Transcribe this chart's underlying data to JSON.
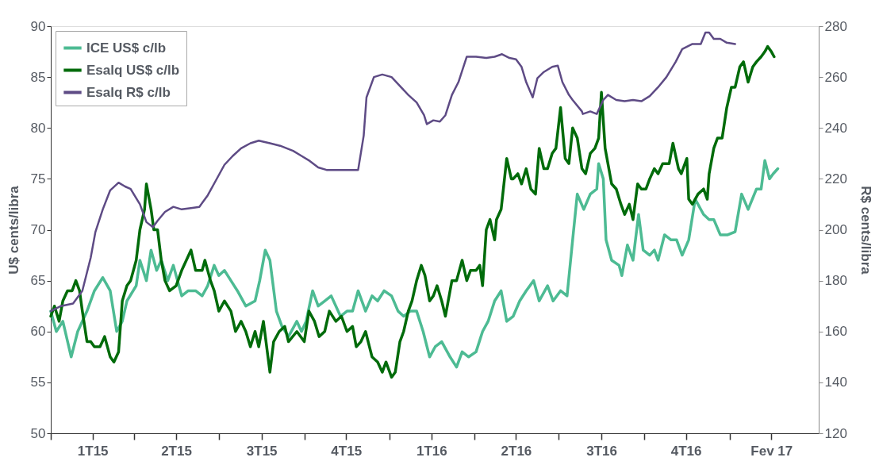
{
  "chart_data": {
    "type": "line",
    "ylabel": "U$ cents/libra",
    "y2label": "R$ cents/libra",
    "xlim": [
      "2015-01-01",
      "2017-04-07"
    ],
    "xticks": [
      {
        "value": "2015-01-01",
        "label": null
      },
      {
        "value": "2015-02-15",
        "label": "1T15"
      },
      {
        "value": "2015-04-01",
        "label": null
      },
      {
        "value": "2015-05-16",
        "label": "2T15"
      },
      {
        "value": "2015-07-01",
        "label": null
      },
      {
        "value": "2015-08-16",
        "label": "3T15"
      },
      {
        "value": "2015-10-01",
        "label": null
      },
      {
        "value": "2015-11-15",
        "label": "4T15"
      },
      {
        "value": "2016-01-01",
        "label": null
      },
      {
        "value": "2016-02-15",
        "label": "1T16"
      },
      {
        "value": "2016-04-01",
        "label": null
      },
      {
        "value": "2016-05-16",
        "label": "2T16"
      },
      {
        "value": "2016-07-01",
        "label": null
      },
      {
        "value": "2016-08-16",
        "label": "3T16"
      },
      {
        "value": "2016-10-01",
        "label": null
      },
      {
        "value": "2016-11-15",
        "label": "4T16"
      },
      {
        "value": "2017-01-01",
        "label": null
      },
      {
        "value": "2017-02-15",
        "label": "Fev 17"
      }
    ],
    "ylim": [
      50,
      90
    ],
    "yticks": [
      50,
      55,
      60,
      65,
      70,
      75,
      80,
      85,
      90
    ],
    "y2lim": [
      120,
      280
    ],
    "y2ticks": [
      120,
      140,
      160,
      180,
      200,
      220,
      240,
      260,
      280
    ],
    "legend": "top left",
    "grid": false,
    "series": [
      {
        "name": "ICE US$ c/lb",
        "color": "#4dbb93",
        "x": [
          "2015-01-01",
          "2015-01-07",
          "2015-01-14",
          "2015-01-23",
          "2015-01-30",
          "2015-02-09",
          "2015-02-17",
          "2015-02-26",
          "2015-03-06",
          "2015-03-13",
          "2015-03-19",
          "2015-03-24",
          "2015-04-03",
          "2015-04-07",
          "2015-04-14",
          "2015-04-19",
          "2015-04-25",
          "2015-04-30",
          "2015-05-07",
          "2015-05-13",
          "2015-05-22",
          "2015-05-29",
          "2015-06-06",
          "2015-06-13",
          "2015-06-19",
          "2015-06-26",
          "2015-07-01",
          "2015-07-07",
          "2015-07-14",
          "2015-07-21",
          "2015-07-30",
          "2015-08-09",
          "2015-08-14",
          "2015-08-20",
          "2015-08-25",
          "2015-09-01",
          "2015-09-07",
          "2015-09-14",
          "2015-09-23",
          "2015-09-28",
          "2015-10-03",
          "2015-10-10",
          "2015-10-16",
          "2015-10-23",
          "2015-10-30",
          "2015-11-09",
          "2015-11-16",
          "2015-11-22",
          "2015-11-28",
          "2015-12-06",
          "2015-12-13",
          "2015-12-19",
          "2015-12-26",
          "2016-01-03",
          "2016-01-10",
          "2016-01-16",
          "2016-01-23",
          "2016-01-30",
          "2016-02-06",
          "2016-02-13",
          "2016-02-19",
          "2016-02-26",
          "2016-03-06",
          "2016-03-13",
          "2016-03-19",
          "2016-03-26",
          "2016-04-03",
          "2016-04-10",
          "2016-04-16",
          "2016-04-23",
          "2016-04-30",
          "2016-05-06",
          "2016-05-13",
          "2016-05-20",
          "2016-05-27",
          "2016-06-04",
          "2016-06-10",
          "2016-06-19",
          "2016-06-25",
          "2016-07-03",
          "2016-07-10",
          "2016-07-16",
          "2016-07-21",
          "2016-07-28",
          "2016-08-04",
          "2016-08-11",
          "2016-08-13",
          "2016-08-18",
          "2016-08-21",
          "2016-08-27",
          "2016-09-04",
          "2016-09-07",
          "2016-09-13",
          "2016-09-19",
          "2016-09-25",
          "2016-09-30",
          "2016-10-07",
          "2016-10-12",
          "2016-10-16",
          "2016-10-23",
          "2016-10-30",
          "2016-11-05",
          "2016-11-11",
          "2016-11-18",
          "2016-11-25",
          "2016-12-04",
          "2016-12-10",
          "2016-12-15",
          "2016-12-22",
          "2016-12-30",
          "2017-01-07",
          "2017-01-14",
          "2017-01-21",
          "2017-01-30",
          "2017-02-04",
          "2017-02-08",
          "2017-02-13",
          "2017-02-17",
          "2017-02-22"
        ],
        "values": [
          62,
          60,
          61,
          57.5,
          60,
          62,
          64,
          65.3,
          64,
          60,
          61,
          63,
          64.5,
          67,
          65,
          68,
          66,
          67,
          65,
          66.5,
          63.5,
          64,
          64,
          63.5,
          64.5,
          66.5,
          65.5,
          66,
          65,
          64,
          62.5,
          63,
          65,
          68,
          67,
          62,
          60.5,
          59.5,
          61,
          60,
          61,
          64,
          62.5,
          63,
          63.5,
          61.5,
          62,
          62,
          64,
          62,
          63.5,
          63,
          64,
          63.5,
          62,
          61.5,
          62,
          62,
          60,
          57.5,
          58.5,
          59,
          57.5,
          56.5,
          58,
          57.5,
          58,
          60,
          61,
          63,
          64,
          61,
          61.5,
          63,
          64,
          65,
          63,
          64.5,
          63,
          64,
          63.5,
          69,
          73.5,
          72,
          73.5,
          74,
          76.5,
          75,
          69,
          67,
          66.5,
          65.5,
          68.5,
          67,
          71.5,
          68,
          67.5,
          68,
          67,
          69.5,
          69,
          69,
          67.5,
          69,
          73,
          71.5,
          71,
          71,
          69.5,
          69.5,
          69.8,
          73.5,
          72,
          74,
          74,
          76.8,
          75,
          75.5,
          76
        ]
      },
      {
        "name": "Esalq US$ c/lb",
        "color": "#006b0a",
        "x": [
          "2015-01-01",
          "2015-01-05",
          "2015-01-10",
          "2015-01-14",
          "2015-01-19",
          "2015-01-24",
          "2015-01-28",
          "2015-02-01",
          "2015-02-04",
          "2015-02-09",
          "2015-02-13",
          "2015-02-17",
          "2015-02-23",
          "2015-02-28",
          "2015-03-06",
          "2015-03-10",
          "2015-03-15",
          "2015-03-19",
          "2015-03-24",
          "2015-03-28",
          "2015-04-03",
          "2015-04-07",
          "2015-04-12",
          "2015-04-14",
          "2015-04-19",
          "2015-04-22",
          "2015-04-26",
          "2015-04-30",
          "2015-05-04",
          "2015-05-09",
          "2015-05-16",
          "2015-05-22",
          "2015-05-27",
          "2015-06-01",
          "2015-06-06",
          "2015-06-13",
          "2015-06-16",
          "2015-06-22",
          "2015-06-26",
          "2015-07-01",
          "2015-07-07",
          "2015-07-14",
          "2015-07-19",
          "2015-07-25",
          "2015-07-30",
          "2015-08-04",
          "2015-08-09",
          "2015-08-13",
          "2015-08-18",
          "2015-08-25",
          "2015-08-29",
          "2015-09-04",
          "2015-09-10",
          "2015-09-14",
          "2015-09-23",
          "2015-10-01",
          "2015-10-06",
          "2015-10-12",
          "2015-10-17",
          "2015-10-23",
          "2015-10-28",
          "2015-11-04",
          "2015-11-10",
          "2015-11-16",
          "2015-11-22",
          "2015-11-26",
          "2015-12-01",
          "2015-12-06",
          "2015-12-13",
          "2015-12-19",
          "2015-12-24",
          "2015-12-28",
          "2016-01-03",
          "2016-01-07",
          "2016-01-12",
          "2016-01-16",
          "2016-01-21",
          "2016-01-25",
          "2016-01-30",
          "2016-02-04",
          "2016-02-08",
          "2016-02-13",
          "2016-02-17",
          "2016-02-21",
          "2016-02-26",
          "2016-03-01",
          "2016-03-08",
          "2016-03-13",
          "2016-03-19",
          "2016-03-24",
          "2016-03-28",
          "2016-04-03",
          "2016-04-07",
          "2016-04-10",
          "2016-04-14",
          "2016-04-18",
          "2016-04-23",
          "2016-04-25",
          "2016-04-30",
          "2016-05-06",
          "2016-05-11",
          "2016-05-13",
          "2016-05-18",
          "2016-05-22",
          "2016-05-27",
          "2016-06-01",
          "2016-06-06",
          "2016-06-10",
          "2016-06-15",
          "2016-06-19",
          "2016-06-24",
          "2016-06-28",
          "2016-07-03",
          "2016-07-08",
          "2016-07-12",
          "2016-07-16",
          "2016-07-21",
          "2016-07-26",
          "2016-07-30",
          "2016-08-04",
          "2016-08-09",
          "2016-08-13",
          "2016-08-16",
          "2016-08-20",
          "2016-08-27",
          "2016-09-01",
          "2016-09-06",
          "2016-09-10",
          "2016-09-15",
          "2016-09-19",
          "2016-09-24",
          "2016-09-28",
          "2016-10-03",
          "2016-10-07",
          "2016-10-12",
          "2016-10-16",
          "2016-10-21",
          "2016-10-28",
          "2016-11-01",
          "2016-11-07",
          "2016-11-10",
          "2016-11-16",
          "2016-11-18",
          "2016-11-22",
          "2016-11-28",
          "2016-12-04",
          "2016-12-08",
          "2016-12-10",
          "2016-12-15",
          "2016-12-19",
          "2016-12-24",
          "2016-12-29",
          "2017-01-03",
          "2017-01-07",
          "2017-01-12",
          "2017-01-16",
          "2017-01-21",
          "2017-01-26",
          "2017-01-30",
          "2017-02-04",
          "2017-02-08",
          "2017-02-11",
          "2017-02-15",
          "2017-02-18"
        ],
        "values": [
          61.5,
          62.5,
          61,
          63,
          64,
          64,
          65,
          64,
          62,
          59,
          59,
          58.5,
          58.5,
          59.5,
          57.5,
          57,
          58,
          63,
          64.5,
          65,
          67,
          70,
          72,
          74.5,
          72,
          70,
          70,
          67,
          65,
          64,
          64.5,
          66,
          67,
          68,
          66,
          66,
          67,
          65,
          64,
          62,
          63,
          62,
          60,
          61,
          60,
          58.5,
          60,
          58.5,
          61,
          56,
          59,
          60,
          60.5,
          59,
          60,
          59,
          62,
          61,
          59.5,
          60,
          62,
          61,
          61.5,
          60,
          60.5,
          58.5,
          59,
          60,
          57.5,
          57,
          56,
          57,
          55.5,
          56,
          59,
          60,
          62,
          63,
          65,
          66.5,
          65.5,
          63,
          63.5,
          64.5,
          63,
          61.5,
          65,
          65,
          67,
          65,
          66,
          66,
          66.5,
          64.5,
          70,
          71,
          69,
          71,
          72,
          77,
          75,
          75,
          75.5,
          74.5,
          76,
          74,
          73.5,
          78,
          76,
          76,
          77.5,
          78,
          82,
          77,
          76.5,
          80,
          79,
          76,
          75.5,
          77.5,
          78,
          79,
          83.5,
          78,
          74.5,
          74,
          72.5,
          71.5,
          72.5,
          71,
          74.5,
          74,
          74,
          75,
          76,
          75.5,
          76.5,
          76.5,
          78.5,
          76,
          75.5,
          77,
          73,
          72.5,
          73.5,
          74,
          73,
          75.5,
          78,
          79,
          79,
          82,
          84,
          84,
          86,
          86.5,
          84.5,
          86,
          86.5,
          87,
          87.5,
          88,
          87.5,
          87
        ]
      },
      {
        "name": "Esalq R$ c/lb",
        "color": "#5e4b85",
        "axis": "y2",
        "x": [
          "2015-01-01",
          "2015-01-12",
          "2015-01-25",
          "2015-02-04",
          "2015-02-13",
          "2015-02-18",
          "2015-02-26",
          "2015-03-06",
          "2015-03-15",
          "2015-03-22",
          "2015-03-28",
          "2015-04-07",
          "2015-04-14",
          "2015-04-21",
          "2015-04-26",
          "2015-05-04",
          "2015-05-13",
          "2015-05-22",
          "2015-06-01",
          "2015-06-10",
          "2015-06-19",
          "2015-06-28",
          "2015-07-07",
          "2015-07-16",
          "2015-07-25",
          "2015-08-04",
          "2015-08-13",
          "2015-08-25",
          "2015-09-05",
          "2015-09-19",
          "2015-09-28",
          "2015-10-07",
          "2015-10-16",
          "2015-10-25",
          "2015-11-09",
          "2015-11-28",
          "2015-12-04",
          "2015-12-07",
          "2015-12-15",
          "2015-12-24",
          "2016-01-03",
          "2016-01-12",
          "2016-01-21",
          "2016-01-30",
          "2016-02-07",
          "2016-02-10",
          "2016-02-17",
          "2016-02-24",
          "2016-03-01",
          "2016-03-08",
          "2016-03-15",
          "2016-03-24",
          "2016-04-03",
          "2016-04-14",
          "2016-04-23",
          "2016-05-01",
          "2016-05-09",
          "2016-05-16",
          "2016-05-22",
          "2016-05-27",
          "2016-06-03",
          "2016-06-08",
          "2016-06-15",
          "2016-06-24",
          "2016-06-30",
          "2016-07-05",
          "2016-07-12",
          "2016-07-16",
          "2016-07-26",
          "2016-07-27",
          "2016-08-04",
          "2016-08-11",
          "2016-08-18",
          "2016-08-23",
          "2016-09-01",
          "2016-09-10",
          "2016-09-19",
          "2016-09-28",
          "2016-10-07",
          "2016-10-16",
          "2016-10-25",
          "2016-11-04",
          "2016-11-11",
          "2016-11-22",
          "2016-12-01",
          "2016-12-06",
          "2016-12-10",
          "2016-12-15",
          "2016-12-22",
          "2016-12-29",
          "2017-01-07"
        ],
        "values": [
          168,
          170,
          171,
          176,
          189,
          199,
          208,
          215.5,
          218.5,
          217,
          216,
          210,
          203,
          201,
          203.5,
          207,
          209,
          208,
          208.5,
          209,
          213.5,
          219.5,
          225.5,
          229,
          232,
          234,
          235,
          234,
          233,
          231,
          229,
          227,
          224.5,
          223.5,
          223.5,
          223.5,
          237,
          252,
          260,
          261,
          260,
          256.5,
          253,
          250,
          245,
          241.5,
          243,
          242.5,
          245,
          253,
          258,
          268,
          268,
          267.5,
          268,
          269,
          267.5,
          267,
          264,
          258,
          252,
          259.5,
          262,
          264,
          264.5,
          258,
          253,
          251,
          246.5,
          245.5,
          246.5,
          245.5,
          251,
          253,
          251,
          250.5,
          251,
          250.5,
          252.5,
          256,
          260,
          266,
          271,
          273,
          273,
          277.5,
          277.5,
          275,
          275,
          273.5,
          273
        ]
      }
    ]
  }
}
